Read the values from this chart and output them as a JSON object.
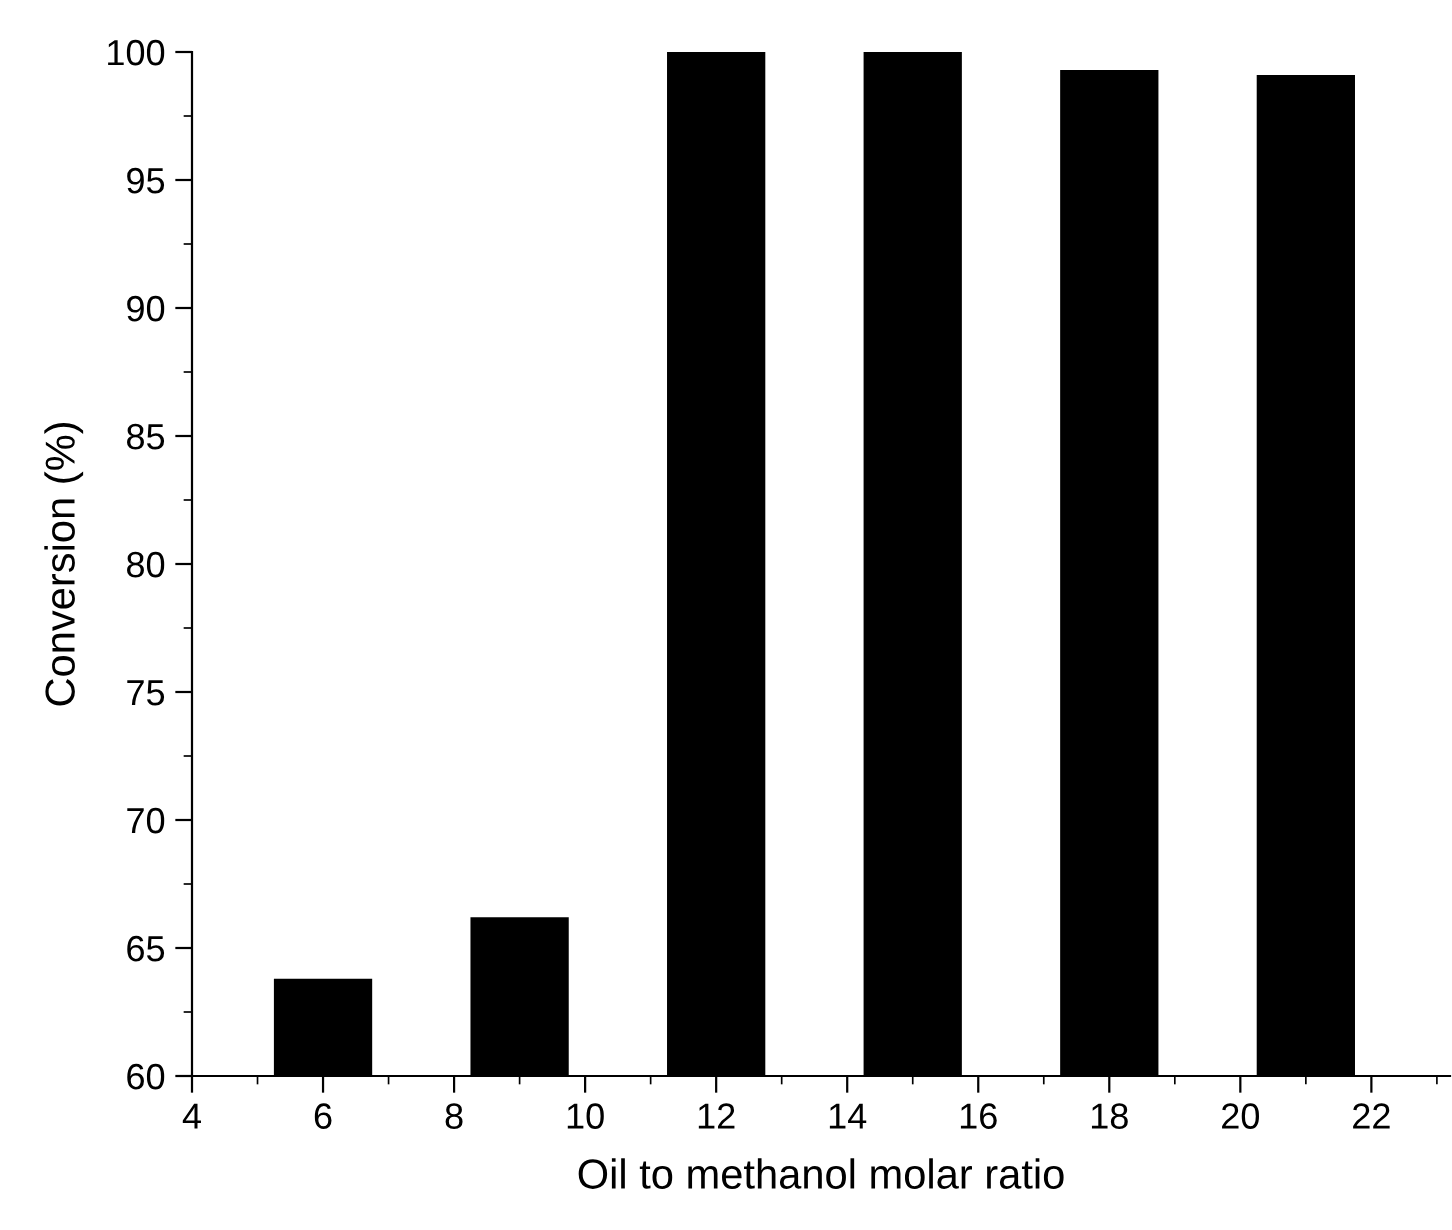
{
  "chart_data": {
    "type": "bar",
    "xlabel": "Oil to methanol molar ratio",
    "ylabel": "Conversion (%)",
    "x": [
      6,
      9,
      12,
      15,
      18,
      21
    ],
    "values": [
      63.8,
      66.2,
      100,
      100,
      99.3,
      99.1
    ],
    "color": "#000000",
    "xlim": [
      4,
      23.2
    ],
    "xticks": [
      4,
      6,
      8,
      10,
      12,
      14,
      16,
      18,
      20,
      22
    ],
    "ylim": [
      60,
      100
    ],
    "yticks": [
      60,
      65,
      70,
      75,
      80,
      85,
      90,
      95,
      100
    ],
    "grid": false,
    "legend": false
  }
}
